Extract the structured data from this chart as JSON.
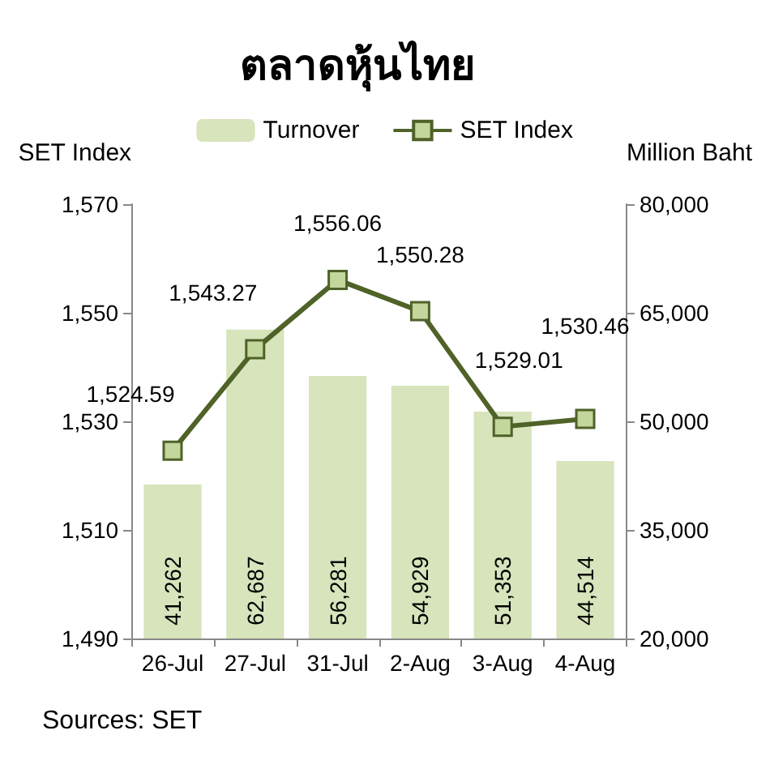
{
  "chart_data": {
    "type": "bar",
    "title": "ตลาดหุ้นไทย",
    "ylabel": "SET Index",
    "y2label": "Million Baht",
    "categories": [
      "26-Jul",
      "27-Jul",
      "31-Jul",
      "2-Aug",
      "3-Aug",
      "4-Aug"
    ],
    "series": [
      {
        "name": "Turnover",
        "type": "bar",
        "axis": "y2",
        "color": "#d7e4bc",
        "values": [
          41262,
          62687,
          56281,
          54929,
          51353,
          44514
        ],
        "value_labels": [
          "41,262",
          "62,687",
          "56,281",
          "54,929",
          "51,353",
          "44,514"
        ]
      },
      {
        "name": "SET Index",
        "type": "line",
        "axis": "y",
        "color": "#4f6228",
        "marker": "square",
        "values": [
          1524.59,
          1543.27,
          1556.06,
          1550.28,
          1529.01,
          1530.46
        ],
        "value_labels": [
          "1,524.59",
          "1,543.27",
          "1,556.06",
          "1,550.28",
          "1,529.01",
          "1,530.46"
        ]
      }
    ],
    "ylim": [
      1490,
      1570
    ],
    "yticks": [
      {
        "value": 1490,
        "label": "1,490"
      },
      {
        "value": 1510,
        "label": "1,510"
      },
      {
        "value": 1530,
        "label": "1,530"
      },
      {
        "value": 1550,
        "label": "1,550"
      },
      {
        "value": 1570,
        "label": "1,570"
      }
    ],
    "y2lim": [
      20000,
      80000
    ],
    "y2ticks": [
      {
        "value": 20000,
        "label": "20,000"
      },
      {
        "value": 35000,
        "label": "35,000"
      },
      {
        "value": 50000,
        "label": "50,000"
      },
      {
        "value": 65000,
        "label": "65,000"
      },
      {
        "value": 80000,
        "label": "80,000"
      }
    ],
    "legend": "top",
    "grid": false,
    "annotations": [
      "Sources: SET"
    ]
  }
}
